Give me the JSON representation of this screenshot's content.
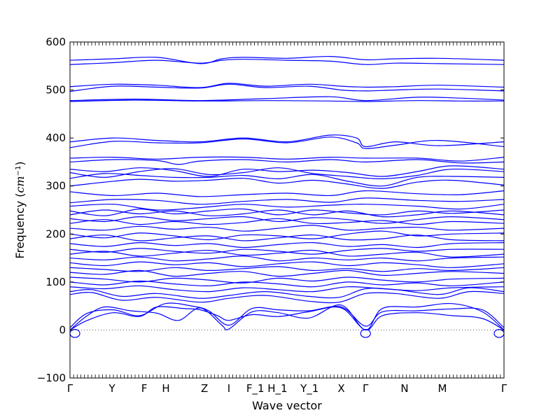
{
  "chart_data": {
    "type": "line",
    "title": "",
    "xlabel": "Wave vector",
    "ylabel_prefix": "Frequency (",
    "ylabel_unit_base": "cm",
    "ylabel_unit_exp": "−1",
    "ylabel_suffix": ")",
    "ylim": [
      -100,
      600
    ],
    "yticks": [
      -100,
      0,
      100,
      200,
      300,
      400,
      500,
      600
    ],
    "grid": false,
    "legend": "none",
    "line_color": "#0000ff",
    "zero_line_color": "#555555",
    "xticks": [
      {
        "label": "Γ",
        "pos": 0.0
      },
      {
        "label": "Y",
        "pos": 0.097
      },
      {
        "label": "F",
        "pos": 0.171
      },
      {
        "label": "H",
        "pos": 0.221
      },
      {
        "label": "Z",
        "pos": 0.31
      },
      {
        "label": "I",
        "pos": 0.366
      },
      {
        "label": "F_1",
        "pos": 0.427
      },
      {
        "label": "H_1",
        "pos": 0.478
      },
      {
        "label": "Y_1",
        "pos": 0.552
      },
      {
        "label": "X",
        "pos": 0.625
      },
      {
        "label": "Γ",
        "pos": 0.681
      },
      {
        "label": "N",
        "pos": 0.771
      },
      {
        "label": "M",
        "pos": 0.858
      },
      {
        "label": "Γ",
        "pos": 1.0
      }
    ],
    "series": [
      {
        "x": [
          0,
          0.1,
          0.2,
          0.3,
          0.35,
          0.4,
          0.5,
          0.6,
          0.681,
          0.75,
          0.85,
          1.0
        ],
        "y": [
          562,
          565,
          568,
          555,
          565,
          568,
          566,
          570,
          563,
          565,
          566,
          562
        ]
      },
      {
        "x": [
          0,
          0.1,
          0.2,
          0.3,
          0.35,
          0.4,
          0.5,
          0.6,
          0.681,
          0.75,
          0.85,
          1.0
        ],
        "y": [
          553,
          557,
          562,
          556,
          562,
          564,
          562,
          560,
          553,
          556,
          555,
          553
        ]
      },
      {
        "x": [
          0,
          0.1,
          0.2,
          0.3,
          0.366,
          0.45,
          0.55,
          0.625,
          0.681,
          0.75,
          0.85,
          1.0
        ],
        "y": [
          507,
          512,
          510,
          505,
          514,
          508,
          512,
          508,
          506,
          507,
          510,
          506
        ]
      },
      {
        "x": [
          0,
          0.1,
          0.2,
          0.3,
          0.366,
          0.45,
          0.55,
          0.625,
          0.681,
          0.75,
          0.85,
          1.0
        ],
        "y": [
          497,
          508,
          506,
          504,
          512,
          505,
          508,
          500,
          498,
          500,
          502,
          498
        ]
      },
      {
        "x": [
          0,
          0.15,
          0.3,
          0.45,
          0.6,
          0.681,
          0.8,
          0.9,
          1.0
        ],
        "y": [
          478,
          481,
          478,
          482,
          486,
          478,
          485,
          483,
          479
        ]
      },
      {
        "x": [
          0,
          0.15,
          0.3,
          0.45,
          0.6,
          0.681,
          0.8,
          0.9,
          1.0
        ],
        "y": [
          476,
          479,
          477,
          478,
          477,
          476,
          478,
          477,
          477
        ]
      },
      {
        "x": [
          0,
          0.1,
          0.2,
          0.3,
          0.4,
          0.5,
          0.6,
          0.66,
          0.681,
          0.75,
          0.85,
          1.0
        ],
        "y": [
          392,
          400,
          395,
          392,
          400,
          392,
          406,
          400,
          382,
          392,
          384,
          392
        ]
      },
      {
        "x": [
          0,
          0.1,
          0.2,
          0.3,
          0.4,
          0.5,
          0.6,
          0.66,
          0.681,
          0.75,
          0.85,
          1.0
        ],
        "y": [
          380,
          393,
          390,
          390,
          398,
          390,
          402,
          390,
          378,
          385,
          395,
          382
        ]
      },
      {
        "x": [
          0,
          0.1,
          0.2,
          0.3,
          0.4,
          0.5,
          0.6,
          0.681,
          0.8,
          0.9,
          1.0
        ],
        "y": [
          358,
          360,
          356,
          360,
          360,
          356,
          360,
          358,
          358,
          352,
          360
        ]
      },
      {
        "x": [
          0,
          0.1,
          0.2,
          0.25,
          0.3,
          0.4,
          0.5,
          0.6,
          0.681,
          0.8,
          0.9,
          1.0
        ],
        "y": [
          350,
          355,
          353,
          345,
          352,
          355,
          350,
          355,
          350,
          355,
          348,
          350
        ]
      },
      {
        "x": [
          0,
          0.08,
          0.16,
          0.24,
          0.32,
          0.4,
          0.48,
          0.56,
          0.64,
          0.72,
          0.8,
          0.88,
          1.0
        ],
        "y": [
          335,
          330,
          338,
          332,
          320,
          335,
          330,
          333,
          328,
          320,
          330,
          342,
          335
        ]
      },
      {
        "x": [
          0,
          0.08,
          0.16,
          0.24,
          0.32,
          0.4,
          0.48,
          0.56,
          0.64,
          0.72,
          0.8,
          0.88,
          1.0
        ],
        "y": [
          328,
          318,
          330,
          336,
          324,
          328,
          338,
          326,
          320,
          315,
          322,
          335,
          330
        ]
      },
      {
        "x": [
          0,
          0.08,
          0.16,
          0.24,
          0.32,
          0.4,
          0.48,
          0.56,
          0.64,
          0.72,
          0.8,
          0.88,
          1.0
        ],
        "y": [
          316,
          326,
          322,
          318,
          318,
          322,
          315,
          324,
          310,
          300,
          318,
          320,
          318
        ]
      },
      {
        "x": [
          0,
          0.08,
          0.16,
          0.24,
          0.32,
          0.4,
          0.48,
          0.56,
          0.64,
          0.72,
          0.8,
          0.88,
          1.0
        ],
        "y": [
          300,
          308,
          314,
          310,
          312,
          316,
          306,
          312,
          304,
          295,
          308,
          312,
          302
        ]
      },
      {
        "x": [
          0,
          0.1,
          0.2,
          0.3,
          0.4,
          0.5,
          0.6,
          0.681,
          0.8,
          0.9,
          1.0
        ],
        "y": [
          288,
          280,
          285,
          278,
          282,
          285,
          280,
          290,
          284,
          282,
          290
        ]
      },
      {
        "x": [
          0,
          0.1,
          0.2,
          0.3,
          0.4,
          0.5,
          0.6,
          0.681,
          0.8,
          0.9,
          1.0
        ],
        "y": [
          265,
          272,
          270,
          262,
          268,
          272,
          266,
          275,
          270,
          268,
          272
        ]
      },
      {
        "x": [
          0,
          0.1,
          0.2,
          0.3,
          0.4,
          0.5,
          0.6,
          0.681,
          0.8,
          0.9,
          1.0
        ],
        "y": [
          258,
          262,
          250,
          255,
          262,
          256,
          260,
          262,
          258,
          252,
          262
        ]
      },
      {
        "x": [
          0,
          0.08,
          0.16,
          0.24,
          0.32,
          0.4,
          0.48,
          0.56,
          0.64,
          0.72,
          0.8,
          0.88,
          1.0
        ],
        "y": [
          248,
          238,
          252,
          242,
          248,
          252,
          240,
          250,
          244,
          240,
          248,
          243,
          250
        ]
      },
      {
        "x": [
          0,
          0.08,
          0.16,
          0.24,
          0.32,
          0.4,
          0.48,
          0.56,
          0.64,
          0.72,
          0.8,
          0.88,
          1.0
        ],
        "y": [
          240,
          250,
          242,
          248,
          238,
          242,
          250,
          240,
          248,
          236,
          240,
          248,
          240
        ]
      },
      {
        "x": [
          0,
          0.08,
          0.16,
          0.24,
          0.32,
          0.4,
          0.48,
          0.56,
          0.64,
          0.72,
          0.8,
          0.88,
          1.0
        ],
        "y": [
          232,
          226,
          236,
          228,
          232,
          236,
          226,
          234,
          230,
          222,
          230,
          236,
          230
        ]
      },
      {
        "x": [
          0,
          0.08,
          0.16,
          0.24,
          0.32,
          0.4,
          0.48,
          0.56,
          0.64,
          0.72,
          0.8,
          0.88,
          1.0
        ],
        "y": [
          222,
          230,
          220,
          226,
          220,
          224,
          232,
          222,
          224,
          228,
          220,
          226,
          222
        ]
      },
      {
        "x": [
          0,
          0.08,
          0.16,
          0.24,
          0.32,
          0.4,
          0.48,
          0.56,
          0.64,
          0.72,
          0.8,
          0.88,
          1.0
        ],
        "y": [
          212,
          208,
          216,
          210,
          214,
          206,
          212,
          218,
          208,
          212,
          214,
          208,
          212
        ]
      },
      {
        "x": [
          0,
          0.08,
          0.16,
          0.24,
          0.32,
          0.4,
          0.48,
          0.56,
          0.64,
          0.72,
          0.8,
          0.88,
          1.0
        ],
        "y": [
          200,
          192,
          202,
          196,
          188,
          198,
          196,
          190,
          200,
          206,
          196,
          200,
          202
        ]
      },
      {
        "x": [
          0,
          0.08,
          0.16,
          0.24,
          0.32,
          0.4,
          0.48,
          0.56,
          0.64,
          0.72,
          0.8,
          0.88,
          1.0
        ],
        "y": [
          190,
          198,
          186,
          192,
          196,
          186,
          192,
          198,
          188,
          190,
          198,
          188,
          186
        ]
      },
      {
        "x": [
          0,
          0.08,
          0.16,
          0.24,
          0.32,
          0.4,
          0.48,
          0.56,
          0.64,
          0.72,
          0.8,
          0.88,
          1.0
        ],
        "y": [
          180,
          174,
          182,
          176,
          180,
          172,
          178,
          182,
          174,
          178,
          172,
          180,
          182
        ]
      },
      {
        "x": [
          0,
          0.08,
          0.16,
          0.24,
          0.32,
          0.4,
          0.48,
          0.56,
          0.64,
          0.72,
          0.8,
          0.88,
          1.0
        ],
        "y": [
          168,
          162,
          170,
          164,
          160,
          168,
          164,
          158,
          166,
          170,
          164,
          168,
          168
        ]
      },
      {
        "x": [
          0,
          0.08,
          0.16,
          0.24,
          0.32,
          0.4,
          0.48,
          0.56,
          0.64,
          0.72,
          0.8,
          0.88,
          1.0
        ],
        "y": [
          158,
          164,
          154,
          160,
          166,
          156,
          160,
          166,
          154,
          158,
          162,
          152,
          158
        ]
      },
      {
        "x": [
          0,
          0.08,
          0.16,
          0.24,
          0.32,
          0.4,
          0.48,
          0.56,
          0.64,
          0.72,
          0.8,
          0.88,
          1.0
        ],
        "y": [
          150,
          146,
          152,
          144,
          148,
          154,
          144,
          150,
          146,
          150,
          144,
          150,
          152
        ]
      },
      {
        "x": [
          0,
          0.08,
          0.16,
          0.24,
          0.32,
          0.4,
          0.48,
          0.56,
          0.64,
          0.72,
          0.8,
          0.88,
          1.0
        ],
        "y": [
          140,
          134,
          142,
          136,
          140,
          132,
          138,
          142,
          134,
          140,
          136,
          130,
          138
        ]
      },
      {
        "x": [
          0,
          0.08,
          0.16,
          0.24,
          0.32,
          0.4,
          0.48,
          0.56,
          0.64,
          0.72,
          0.8,
          0.88,
          1.0
        ],
        "y": [
          130,
          126,
          122,
          130,
          124,
          128,
          132,
          124,
          128,
          122,
          128,
          124,
          130
        ]
      },
      {
        "x": [
          0,
          0.08,
          0.16,
          0.24,
          0.32,
          0.4,
          0.48,
          0.56,
          0.64,
          0.72,
          0.8,
          0.88,
          1.0
        ],
        "y": [
          120,
          116,
          124,
          112,
          118,
          122,
          112,
          118,
          124,
          114,
          118,
          122,
          118
        ]
      },
      {
        "x": [
          0,
          0.08,
          0.16,
          0.24,
          0.32,
          0.4,
          0.48,
          0.56,
          0.64,
          0.72,
          0.8,
          0.88,
          1.0
        ],
        "y": [
          110,
          106,
          100,
          108,
          104,
          98,
          108,
          102,
          110,
          104,
          100,
          106,
          108
        ]
      },
      {
        "x": [
          0,
          0.08,
          0.16,
          0.24,
          0.32,
          0.4,
          0.48,
          0.56,
          0.64,
          0.72,
          0.8,
          0.88,
          1.0
        ],
        "y": [
          100,
          94,
          102,
          96,
          92,
          100,
          96,
          90,
          100,
          94,
          98,
          92,
          100
        ]
      },
      {
        "x": [
          0,
          0.08,
          0.16,
          0.24,
          0.32,
          0.4,
          0.48,
          0.56,
          0.64,
          0.72,
          0.8,
          0.88,
          1.0
        ],
        "y": [
          90,
          86,
          92,
          84,
          80,
          88,
          84,
          80,
          90,
          86,
          82,
          88,
          90
        ]
      },
      {
        "x": [
          0,
          0.05,
          0.12,
          0.2,
          0.3,
          0.366,
          0.45,
          0.55,
          0.62,
          0.681,
          0.75,
          0.85,
          0.92,
          1.0
        ],
        "y": [
          80,
          84,
          70,
          76,
          66,
          72,
          80,
          70,
          68,
          86,
          84,
          74,
          88,
          80
        ]
      },
      {
        "x": [
          0,
          0.05,
          0.12,
          0.2,
          0.3,
          0.366,
          0.45,
          0.55,
          0.62,
          0.681,
          0.75,
          0.85,
          0.92,
          1.0
        ],
        "y": [
          74,
          78,
          62,
          68,
          58,
          66,
          72,
          60,
          58,
          76,
          76,
          66,
          80,
          76
        ]
      },
      {
        "x": [
          0,
          0.04,
          0.1,
          0.16,
          0.22,
          0.28,
          0.32,
          0.366,
          0.42,
          0.48,
          0.55,
          0.625,
          0.681,
          0.72,
          0.8,
          0.88,
          0.95,
          1.0
        ],
        "y": [
          5,
          35,
          42,
          30,
          55,
          50,
          40,
          10,
          45,
          42,
          40,
          48,
          8,
          38,
          40,
          44,
          42,
          5
        ]
      },
      {
        "x": [
          0,
          0.04,
          0.08,
          0.14,
          0.2,
          0.25,
          0.3,
          0.35,
          0.366,
          0.42,
          0.48,
          0.55,
          0.625,
          0.681,
          0.72,
          0.8,
          0.88,
          0.95,
          1.0
        ],
        "y": [
          0,
          30,
          48,
          40,
          35,
          20,
          46,
          10,
          2,
          38,
          36,
          25,
          52,
          0,
          45,
          48,
          55,
          38,
          0
        ]
      },
      {
        "x": [
          0,
          0.04,
          0.1,
          0.16,
          0.2,
          0.26,
          0.3,
          0.34,
          0.366,
          0.42,
          0.48,
          0.55,
          0.625,
          0.681,
          0.72,
          0.8,
          0.88,
          0.95,
          1.0
        ],
        "y": [
          0,
          20,
          36,
          28,
          48,
          45,
          42,
          30,
          20,
          32,
          28,
          38,
          46,
          0,
          30,
          36,
          30,
          24,
          0
        ]
      }
    ],
    "dips": [
      {
        "x": 0.0,
        "depth": -10
      },
      {
        "x": 0.681,
        "depth": -10
      },
      {
        "x": 1.0,
        "depth": -10
      }
    ]
  }
}
